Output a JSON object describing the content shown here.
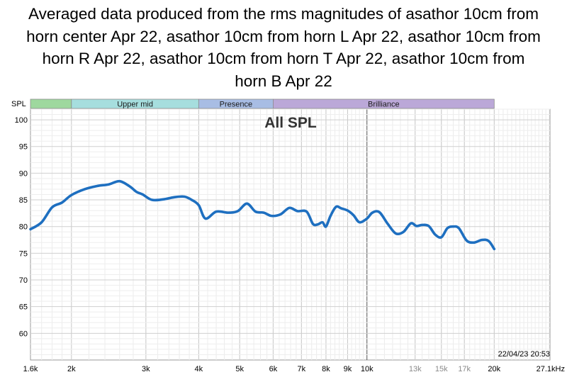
{
  "title_lines": [
    "Averaged data produced from the rms magnitudes of asathor 10cm from",
    "horn center Apr 22, asathor 10cm from horn L Apr 22, asathor 10cm from",
    "horn R Apr 22, asathor 10cm from horn T Apr 22, asathor 10cm from",
    "horn B Apr 22"
  ],
  "timestamp": "22/04/23 20:53",
  "colors": {
    "curve": "#1e6fc0",
    "grid": "#d8d8d8",
    "grid_major": "#555555"
  },
  "chart_data": {
    "type": "line",
    "title": "All SPL",
    "ylabel": "SPL",
    "xlabel": "",
    "x_scale": "log",
    "xlim": [
      1600,
      27100
    ],
    "ylim": [
      55,
      102
    ],
    "grid": true,
    "bands": [
      {
        "name": "",
        "from": 1600,
        "to": 2000,
        "color": "#9ed89e"
      },
      {
        "name": "Upper mid",
        "from": 2000,
        "to": 4000,
        "color": "#a6dede"
      },
      {
        "name": "Presence",
        "from": 4000,
        "to": 6000,
        "color": "#a8bde4"
      },
      {
        "name": "Brilliance",
        "from": 6000,
        "to": 20000,
        "color": "#bba8d8"
      }
    ],
    "y_ticks": [
      60,
      65,
      70,
      75,
      80,
      85,
      90,
      95,
      100
    ],
    "x_ticks": [
      {
        "value": 1600,
        "label": "1.6k",
        "muted": false
      },
      {
        "value": 2000,
        "label": "2k",
        "muted": false
      },
      {
        "value": 3000,
        "label": "3k",
        "muted": false
      },
      {
        "value": 4000,
        "label": "4k",
        "muted": false
      },
      {
        "value": 5000,
        "label": "5k",
        "muted": false
      },
      {
        "value": 6000,
        "label": "6k",
        "muted": false
      },
      {
        "value": 7000,
        "label": "7k",
        "muted": false
      },
      {
        "value": 8000,
        "label": "8k",
        "muted": false
      },
      {
        "value": 9000,
        "label": "9k",
        "muted": false
      },
      {
        "value": 10000,
        "label": "10k",
        "muted": false
      },
      {
        "value": 13000,
        "label": "13k",
        "muted": true
      },
      {
        "value": 15000,
        "label": "15k",
        "muted": true
      },
      {
        "value": 17000,
        "label": "17k",
        "muted": true
      },
      {
        "value": 20000,
        "label": "20k",
        "muted": false
      },
      {
        "value": 27100,
        "label": "27.1kHz",
        "muted": false
      }
    ],
    "series": [
      {
        "x": [
          1600,
          1700,
          1800,
          1900,
          2000,
          2150,
          2300,
          2450,
          2600,
          2750,
          2850,
          2950,
          3100,
          3300,
          3500,
          3700,
          3850,
          4000,
          4150,
          4400,
          4700,
          4950,
          5200,
          5450,
          5700,
          5950,
          6250,
          6550,
          6850,
          7200,
          7450,
          7650,
          7850,
          8000,
          8200,
          8450,
          8700,
          9000,
          9300,
          9600,
          10000,
          10300,
          10700,
          11200,
          11700,
          12200,
          12700,
          13100,
          13500,
          14000,
          14500,
          15000,
          15500,
          16000,
          16500,
          17200,
          17900,
          18700,
          19400,
          20000
        ],
        "y": [
          79.5,
          80.8,
          83.6,
          84.5,
          85.9,
          87.0,
          87.6,
          87.9,
          88.5,
          87.5,
          86.5,
          86.0,
          85.0,
          85.1,
          85.5,
          85.6,
          85.0,
          84.0,
          81.5,
          82.8,
          82.6,
          82.9,
          84.3,
          82.8,
          82.6,
          82.0,
          82.3,
          83.5,
          82.9,
          82.8,
          80.5,
          80.4,
          80.8,
          80.0,
          82.0,
          83.7,
          83.4,
          83.0,
          82.1,
          80.8,
          81.5,
          82.6,
          82.7,
          80.5,
          78.7,
          79.0,
          80.6,
          80.1,
          80.3,
          80.1,
          78.5,
          78.0,
          79.7,
          80.0,
          79.7,
          77.4,
          77.0,
          77.5,
          77.3,
          75.8
        ]
      }
    ]
  }
}
